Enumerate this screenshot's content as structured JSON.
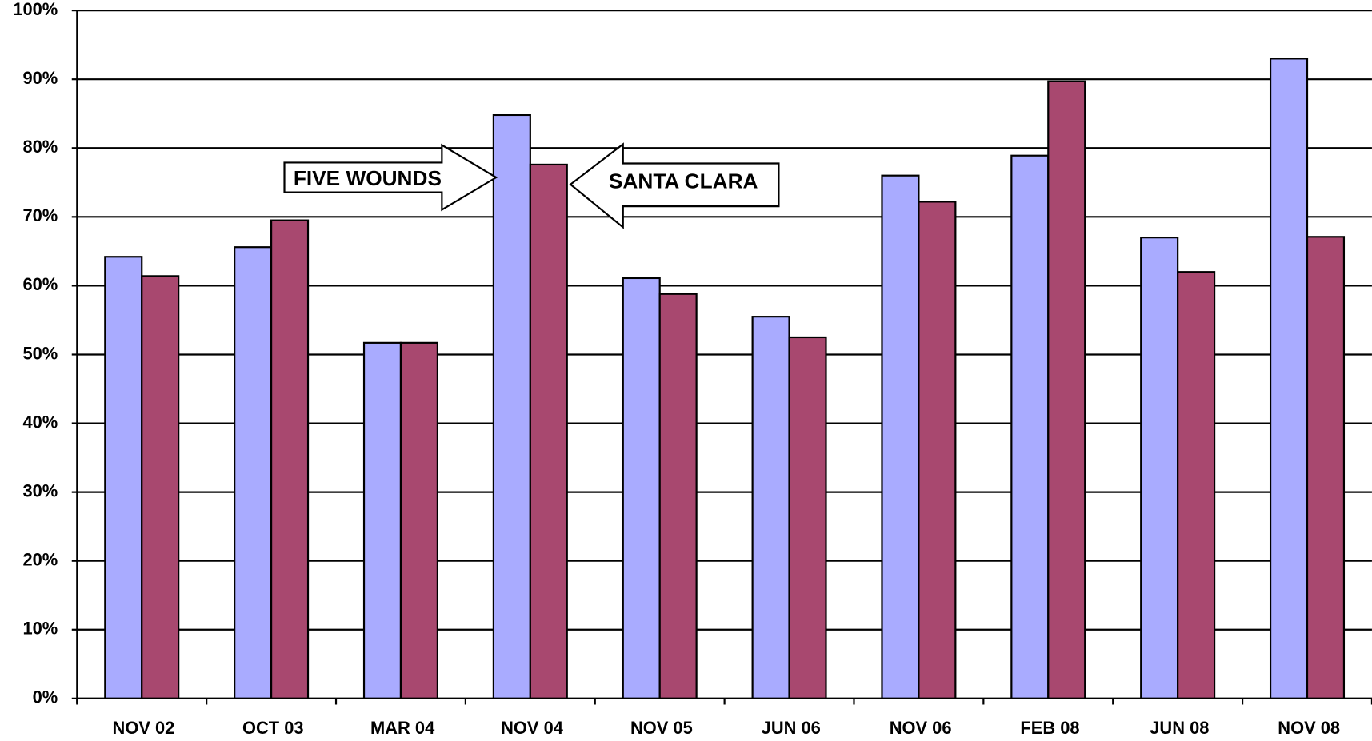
{
  "chart_data": {
    "type": "bar",
    "categories": [
      "NOV 02",
      "OCT 03",
      "MAR 04",
      "NOV 04",
      "NOV 05",
      "JUN 06",
      "NOV 06",
      "FEB 08",
      "JUN 08",
      "NOV 08"
    ],
    "series": [
      {
        "name": "FIVE WOUNDS",
        "color": "#a9abff",
        "values": [
          64.2,
          65.6,
          51.7,
          84.8,
          61.1,
          55.5,
          76.0,
          78.9,
          67.0,
          93.0
        ]
      },
      {
        "name": "SANTA CLARA",
        "color": "#a8486f",
        "values": [
          61.4,
          69.5,
          51.7,
          77.6,
          58.8,
          52.5,
          72.2,
          89.7,
          62.0,
          67.1
        ]
      }
    ],
    "ylim": [
      0,
      100
    ],
    "yticks": [
      {
        "value": 0,
        "label": "0%"
      },
      {
        "value": 10,
        "label": "10%"
      },
      {
        "value": 20,
        "label": "20%"
      },
      {
        "value": 30,
        "label": "30%"
      },
      {
        "value": 40,
        "label": "40%"
      },
      {
        "value": 50,
        "label": "50%"
      },
      {
        "value": 60,
        "label": "60%"
      },
      {
        "value": 70,
        "label": "70%"
      },
      {
        "value": 80,
        "label": "80%"
      },
      {
        "value": 90,
        "label": "90%"
      },
      {
        "value": 100,
        "label": "100%"
      }
    ],
    "grid": true
  }
}
